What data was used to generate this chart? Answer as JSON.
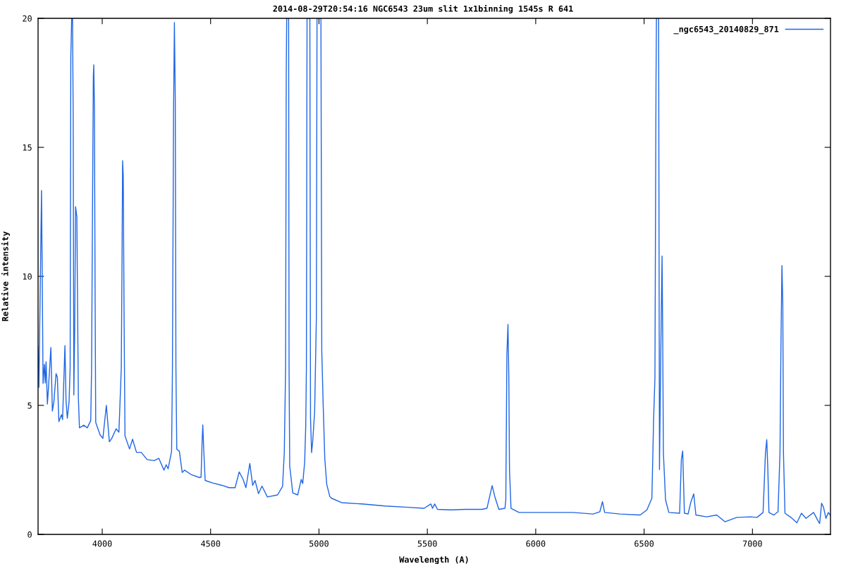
{
  "chart_data": {
    "type": "line",
    "title": "2014-08-29T20:54:16 NGC6543 23um slit 1x1binning 1545s R 641",
    "xlabel": "Wavelength (A)",
    "ylabel": "Relative intensity",
    "xlim": [
      3704,
      7360
    ],
    "xticks": [
      4000,
      4500,
      5000,
      5500,
      6000,
      6500,
      7000
    ],
    "ylim": [
      0,
      20
    ],
    "yticks": [
      0,
      5,
      10,
      15,
      20
    ],
    "grid": false,
    "legend": "top right",
    "marker": "none",
    "line_style": "solid",
    "series": [
      {
        "name": "_ngc6543_20140829_871",
        "color": "#1f66e5",
        "x": [
          3704,
          3708,
          3712,
          3720,
          3724,
          3727,
          3733,
          3737,
          3741,
          3747,
          3752,
          3763,
          3770,
          3777,
          3787,
          3793,
          3800,
          3812,
          3817,
          3828,
          3833,
          3839,
          3847,
          3852,
          3855,
          3859,
          3863,
          3866,
          3869,
          3873,
          3877,
          3883,
          3886,
          3890,
          3895,
          3915,
          3931,
          3947,
          3951,
          3955,
          3959,
          3961,
          3964,
          3967,
          3970,
          3990,
          4003,
          4019,
          4033,
          4044,
          4064,
          4077,
          4088,
          4091,
          4094,
          4097,
          4101,
          4105,
          4126,
          4140,
          4158,
          4180,
          4207,
          4239,
          4261,
          4285,
          4295,
          4304,
          4320,
          4324,
          4329,
          4333,
          4337,
          4340,
          4344,
          4356,
          4369,
          4380,
          4412,
          4450,
          4456,
          4461,
          4464,
          4469,
          4475,
          4510,
          4553,
          4585,
          4613,
          4632,
          4650,
          4663,
          4681,
          4694,
          4705,
          4721,
          4737,
          4762,
          4809,
          4832,
          4840,
          4846,
          4849,
          4851,
          4860,
          4862,
          4865,
          4879,
          4902,
          4918,
          4925,
          4934,
          4939,
          4942,
          4945,
          4958,
          4961,
          4966,
          4971,
          4980,
          4988,
          4991,
          5009,
          5013,
          5019,
          5027,
          5036,
          5050,
          5058,
          5104,
          5197,
          5306,
          5415,
          5485,
          5516,
          5524,
          5534,
          5547,
          5609,
          5674,
          5752,
          5775,
          5799,
          5811,
          5830,
          5858,
          5862,
          5867,
          5872,
          5876,
          5879,
          5886,
          5923,
          6047,
          6171,
          6265,
          6296,
          6308,
          6318,
          6389,
          6482,
          6513,
          6536,
          6544,
          6550,
          6555,
          6557,
          6567,
          6571,
          6577,
          6583,
          6586,
          6589,
          6599,
          6614,
          6664,
          6672,
          6678,
          6686,
          6703,
          6715,
          6729,
          6739,
          6788,
          6835,
          6873,
          6928,
          6990,
          7021,
          7049,
          7060,
          7066,
          7071,
          7076,
          7099,
          7118,
          7127,
          7132,
          7136,
          7140,
          7143,
          7150,
          7177,
          7205,
          7226,
          7247,
          7282,
          7301,
          7310,
          7319,
          7328,
          7339,
          7350,
          7360
        ],
        "values": [
          7.28,
          5.7,
          8.3,
          13.33,
          9.2,
          5.85,
          6.59,
          5.87,
          6.69,
          5.05,
          5.68,
          7.24,
          4.78,
          5.14,
          6.23,
          6.09,
          4.37,
          4.64,
          4.45,
          7.32,
          5.19,
          4.5,
          5.14,
          6.45,
          18.5,
          20,
          20,
          16.2,
          5.4,
          8.0,
          12.7,
          12.3,
          9.05,
          5.27,
          4.13,
          4.23,
          4.13,
          4.41,
          6.45,
          12.46,
          17.75,
          18.2,
          16.5,
          9.57,
          4.34,
          3.86,
          3.72,
          5.0,
          3.59,
          3.72,
          4.09,
          3.96,
          6.45,
          10.1,
          14.48,
          13.9,
          8.28,
          3.82,
          3.31,
          3.69,
          3.18,
          3.18,
          2.9,
          2.86,
          2.95,
          2.49,
          2.7,
          2.54,
          3.22,
          6.45,
          16.24,
          19.84,
          16.9,
          6.45,
          3.3,
          3.22,
          2.4,
          2.49,
          2.31,
          2.2,
          2.22,
          3.63,
          4.24,
          3.14,
          2.09,
          1.99,
          1.9,
          1.81,
          1.81,
          2.42,
          2.13,
          1.81,
          2.75,
          1.9,
          2.09,
          1.58,
          1.87,
          1.45,
          1.53,
          1.86,
          3.17,
          6.45,
          17.8,
          20,
          20,
          6.45,
          2.65,
          1.61,
          1.53,
          2.13,
          1.97,
          2.8,
          4.22,
          6.45,
          20,
          20,
          4.5,
          3.17,
          3.6,
          4.74,
          8.4,
          20,
          20,
          7.09,
          5.14,
          2.91,
          1.93,
          1.47,
          1.4,
          1.23,
          1.18,
          1.1,
          1.05,
          1.01,
          1.18,
          1.01,
          1.18,
          0.97,
          0.95,
          0.97,
          0.97,
          1.01,
          1.89,
          1.47,
          0.97,
          1.01,
          1.34,
          6.97,
          8.14,
          6.05,
          2.51,
          1.01,
          0.85,
          0.85,
          0.85,
          0.79,
          0.88,
          1.27,
          0.85,
          0.79,
          0.75,
          0.95,
          1.4,
          4.48,
          6.05,
          17.55,
          20,
          20,
          2.51,
          7.09,
          10.79,
          7.49,
          3.17,
          1.34,
          0.85,
          0.82,
          2.91,
          3.23,
          0.82,
          0.79,
          1.23,
          1.57,
          0.75,
          0.68,
          0.75,
          0.49,
          0.66,
          0.68,
          0.66,
          0.85,
          3.17,
          3.67,
          2.51,
          0.85,
          0.75,
          0.88,
          3.17,
          7.75,
          10.42,
          8.92,
          3.17,
          0.82,
          0.66,
          0.45,
          0.82,
          0.62,
          0.85,
          0.55,
          0.42,
          1.21,
          1.05,
          0.62,
          0.85,
          0.73
        ]
      }
    ]
  }
}
